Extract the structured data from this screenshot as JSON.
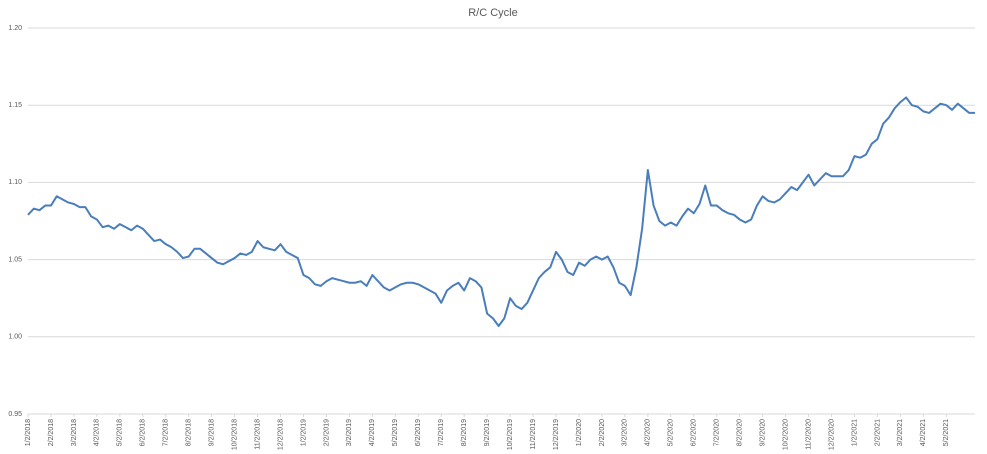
{
  "chart_data": {
    "type": "line",
    "title": "R/C Cycle",
    "categories": [
      "1/2/2018",
      null,
      null,
      null,
      "2/2/2018",
      null,
      null,
      null,
      "3/2/2018",
      null,
      null,
      null,
      "4/2/2018",
      null,
      null,
      null,
      "5/2/2018",
      null,
      null,
      null,
      "6/2/2018",
      null,
      null,
      null,
      "7/2/2018",
      null,
      null,
      null,
      "8/2/2018",
      null,
      null,
      null,
      "9/2/2018",
      null,
      null,
      null,
      "10/2/2018",
      null,
      null,
      null,
      "11/2/2018",
      null,
      null,
      null,
      "12/2/2018",
      null,
      null,
      null,
      "1/2/2019",
      null,
      null,
      null,
      "2/2/2019",
      null,
      null,
      null,
      "3/2/2019",
      null,
      null,
      null,
      "4/2/2019",
      null,
      null,
      null,
      "5/2/2019",
      null,
      null,
      null,
      "6/2/2019",
      null,
      null,
      null,
      "7/2/2019",
      null,
      null,
      null,
      "8/2/2019",
      null,
      null,
      null,
      "9/2/2019",
      null,
      null,
      null,
      "10/2/2019",
      null,
      null,
      null,
      "11/2/2019",
      null,
      null,
      null,
      "12/2/2019",
      null,
      null,
      null,
      "1/2/2020",
      null,
      null,
      null,
      "2/2/2020",
      null,
      null,
      null,
      "3/2/2020",
      null,
      null,
      null,
      "4/2/2020",
      null,
      null,
      null,
      "5/2/2020",
      null,
      null,
      null,
      "6/2/2020",
      null,
      null,
      null,
      "7/2/2020",
      null,
      null,
      null,
      "8/2/2020",
      null,
      null,
      null,
      "9/2/2020",
      null,
      null,
      null,
      "10/2/2020",
      null,
      null,
      null,
      "11/2/2020",
      null,
      null,
      null,
      "12/2/2020",
      null,
      null,
      null,
      "1/2/2021",
      null,
      null,
      null,
      "2/2/2021",
      null,
      null,
      null,
      "3/2/2021",
      null,
      null,
      null,
      "4/2/2021",
      null,
      null,
      null,
      "5/2/2021",
      null,
      null,
      null,
      null,
      null
    ],
    "series": [
      {
        "name": "R/C",
        "color": "#4a7ebb",
        "values": [
          1.079,
          1.083,
          1.082,
          1.085,
          1.085,
          1.091,
          1.089,
          1.087,
          1.086,
          1.084,
          1.084,
          1.078,
          1.076,
          1.071,
          1.072,
          1.07,
          1.073,
          1.071,
          1.069,
          1.072,
          1.07,
          1.066,
          1.062,
          1.063,
          1.06,
          1.058,
          1.055,
          1.051,
          1.052,
          1.057,
          1.057,
          1.054,
          1.051,
          1.048,
          1.047,
          1.049,
          1.051,
          1.054,
          1.053,
          1.055,
          1.062,
          1.058,
          1.057,
          1.056,
          1.06,
          1.055,
          1.053,
          1.051,
          1.04,
          1.038,
          1.034,
          1.033,
          1.036,
          1.038,
          1.037,
          1.036,
          1.035,
          1.035,
          1.036,
          1.033,
          1.04,
          1.036,
          1.032,
          1.03,
          1.032,
          1.034,
          1.035,
          1.035,
          1.034,
          1.032,
          1.03,
          1.028,
          1.022,
          1.03,
          1.033,
          1.035,
          1.03,
          1.038,
          1.036,
          1.032,
          1.015,
          1.012,
          1.007,
          1.012,
          1.025,
          1.02,
          1.018,
          1.022,
          1.03,
          1.038,
          1.042,
          1.045,
          1.055,
          1.05,
          1.042,
          1.04,
          1.048,
          1.046,
          1.05,
          1.052,
          1.05,
          1.052,
          1.045,
          1.035,
          1.033,
          1.027,
          1.045,
          1.07,
          1.108,
          1.085,
          1.075,
          1.072,
          1.074,
          1.072,
          1.078,
          1.083,
          1.08,
          1.086,
          1.098,
          1.085,
          1.085,
          1.082,
          1.08,
          1.079,
          1.076,
          1.074,
          1.076,
          1.085,
          1.091,
          1.088,
          1.087,
          1.089,
          1.093,
          1.097,
          1.095,
          1.1,
          1.105,
          1.098,
          1.102,
          1.106,
          1.104,
          1.104,
          1.104,
          1.108,
          1.117,
          1.116,
          1.118,
          1.125,
          1.128,
          1.138,
          1.142,
          1.148,
          1.152,
          1.155,
          1.15,
          1.149,
          1.146,
          1.145,
          1.148,
          1.151,
          1.15,
          1.147,
          1.151,
          1.148,
          1.145,
          1.145
        ]
      }
    ],
    "ylim": [
      0.95,
      1.2
    ],
    "yticks": [
      {
        "value": 0.95,
        "label": "0.95"
      },
      {
        "value": 1,
        "label": "1.00"
      },
      {
        "value": 1.05,
        "label": "1.05"
      },
      {
        "value": 1.1,
        "label": "1.10"
      },
      {
        "value": 1.15,
        "label": "1.15"
      },
      {
        "value": 1.2,
        "label": "1.20"
      }
    ],
    "grid": true
  }
}
